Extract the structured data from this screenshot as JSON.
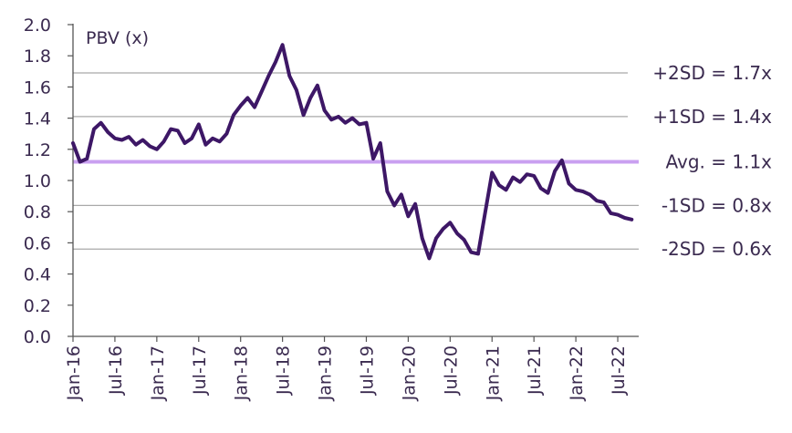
{
  "chart_data": {
    "type": "line",
    "title": "",
    "ylabel": "PBV (x)",
    "xlabel": "",
    "ylim": [
      0.0,
      2.0
    ],
    "xlim": [
      "2016-01",
      "2022-10"
    ],
    "y_ticks": [
      "0.0",
      "0.2",
      "0.4",
      "0.6",
      "0.8",
      "1.0",
      "1.2",
      "1.4",
      "1.6",
      "1.8",
      "2.0"
    ],
    "x_ticks": [
      "Jan-16",
      "Jul-16",
      "Jan-17",
      "Jul-17",
      "Jan-18",
      "Jul-18",
      "Jan-19",
      "Jul-19",
      "Jan-20",
      "Jul-20",
      "Jan-21",
      "Jul-21",
      "Jan-22",
      "Jul-22"
    ],
    "grid": "horizontal reference lines only",
    "colors": {
      "series": "#3d1766",
      "average": "#c9a0f0",
      "sd_lines": "#a9a9a9",
      "axis": "#555555"
    },
    "reference_lines": [
      {
        "label": "+2SD = 1.7x",
        "value": 1.69
      },
      {
        "label": "+1SD = 1.4x",
        "value": 1.41
      },
      {
        "label": "Avg. = 1.1x",
        "value": 1.12
      },
      {
        "label": "-1SD = 0.8x",
        "value": 0.84
      },
      {
        "label": "-2SD = 0.6x",
        "value": 0.56
      }
    ],
    "series": [
      {
        "x": [
          "2016-01",
          "2016-02",
          "2016-03",
          "2016-04",
          "2016-05",
          "2016-06",
          "2016-07",
          "2016-08",
          "2016-09",
          "2016-10",
          "2016-11",
          "2016-12",
          "2017-01",
          "2017-02",
          "2017-03",
          "2017-04",
          "2017-05",
          "2017-06",
          "2017-07",
          "2017-08",
          "2017-09",
          "2017-10",
          "2017-11",
          "2017-12",
          "2018-01",
          "2018-02",
          "2018-03",
          "2018-04",
          "2018-05",
          "2018-06",
          "2018-07",
          "2018-08",
          "2018-09",
          "2018-10",
          "2018-11",
          "2018-12",
          "2019-01",
          "2019-02",
          "2019-03",
          "2019-04",
          "2019-05",
          "2019-06",
          "2019-07",
          "2019-08",
          "2019-09",
          "2019-10",
          "2019-11",
          "2019-12",
          "2020-01",
          "2020-02",
          "2020-03",
          "2020-04",
          "2020-05",
          "2020-06",
          "2020-07",
          "2020-08",
          "2020-09",
          "2020-10",
          "2020-11",
          "2020-12",
          "2021-01",
          "2021-02",
          "2021-03",
          "2021-04",
          "2021-05",
          "2021-06",
          "2021-07",
          "2021-08",
          "2021-09",
          "2021-10",
          "2021-11",
          "2021-12",
          "2022-01",
          "2022-02",
          "2022-03",
          "2022-04",
          "2022-05",
          "2022-06",
          "2022-07",
          "2022-08",
          "2022-09"
        ],
        "y": [
          1.24,
          1.12,
          1.14,
          1.33,
          1.37,
          1.31,
          1.27,
          1.26,
          1.28,
          1.23,
          1.26,
          1.22,
          1.2,
          1.25,
          1.33,
          1.32,
          1.24,
          1.27,
          1.36,
          1.23,
          1.27,
          1.25,
          1.3,
          1.42,
          1.48,
          1.53,
          1.47,
          1.57,
          1.67,
          1.76,
          1.87,
          1.67,
          1.58,
          1.42,
          1.53,
          1.61,
          1.45,
          1.39,
          1.41,
          1.37,
          1.4,
          1.36,
          1.37,
          1.14,
          1.24,
          0.93,
          0.84,
          0.91,
          0.77,
          0.85,
          0.63,
          0.5,
          0.63,
          0.69,
          0.73,
          0.66,
          0.62,
          0.54,
          0.53,
          0.79,
          1.05,
          0.97,
          0.94,
          1.02,
          0.99,
          1.04,
          1.03,
          0.95,
          0.92,
          1.06,
          1.13,
          0.98,
          0.94,
          0.93,
          0.91,
          0.87,
          0.86,
          0.79,
          0.78,
          0.76,
          0.75
        ]
      }
    ]
  }
}
